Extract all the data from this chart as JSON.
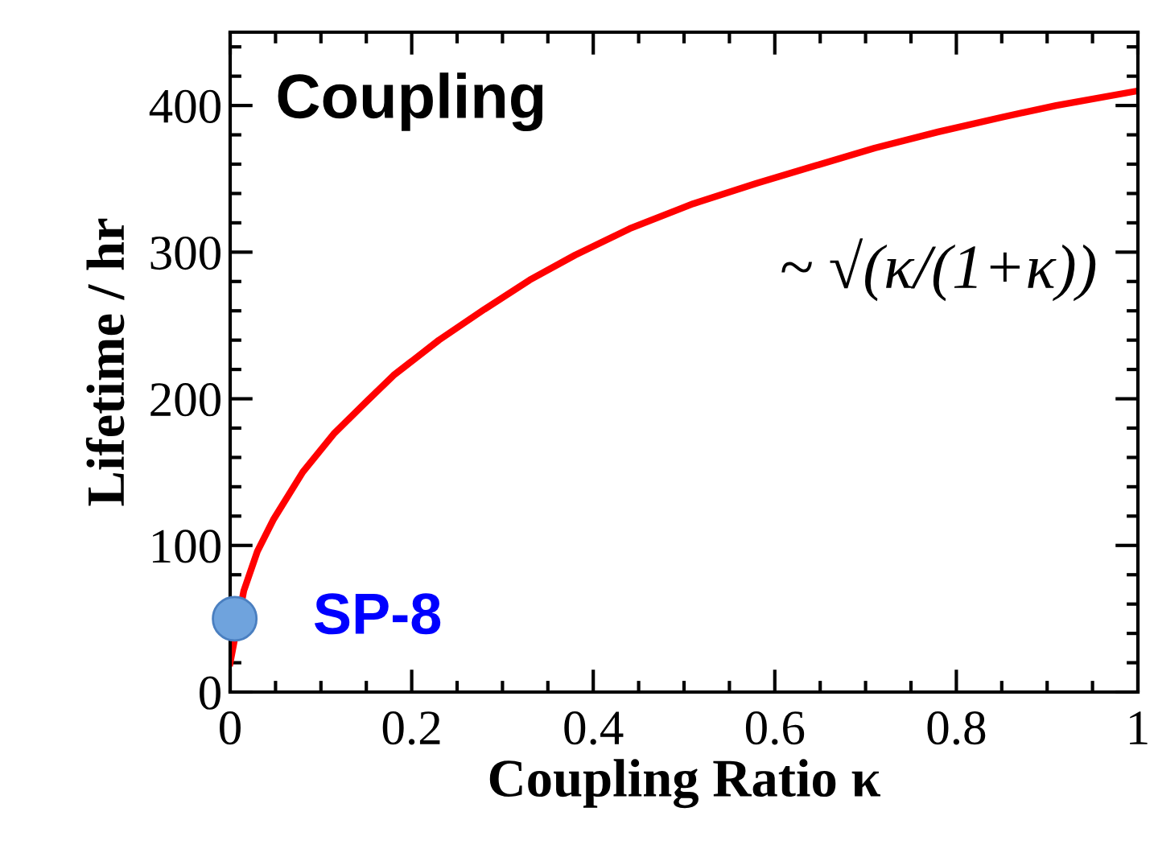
{
  "chart_data": {
    "type": "line",
    "title": "Coupling",
    "xlabel": "Coupling Ratio κ",
    "ylabel": "Lifetime / hr",
    "xlim": [
      0,
      1
    ],
    "xticks": [
      0,
      0.2,
      0.4,
      0.6,
      0.8,
      1
    ],
    "ylim": [
      0,
      450
    ],
    "yticks": [
      0,
      100,
      200,
      300,
      400
    ],
    "grid": false,
    "legend": false,
    "line_style": "solid",
    "series": [
      {
        "color": "#ff0000",
        "marker": "none",
        "x": [
          0.0,
          0.015,
          0.03,
          0.048,
          0.08,
          0.114,
          0.15,
          0.18,
          0.23,
          0.28,
          0.33,
          0.38,
          0.44,
          0.51,
          0.58,
          0.645,
          0.71,
          0.78,
          0.85,
          0.91,
          1.0
        ],
        "values": [
          20,
          69,
          96,
          118,
          150,
          176,
          198,
          216,
          240,
          261,
          281,
          298,
          316,
          333,
          347,
          359,
          371,
          382,
          392,
          400,
          410
        ]
      },
      {
        "type": "scatter",
        "marker": "circle",
        "name": "SP-8",
        "color": "#6fa3dd",
        "x": [
          0.005
        ],
        "values": [
          50
        ]
      }
    ],
    "annotations": [
      "~ √(κ/(1+κ))"
    ]
  }
}
